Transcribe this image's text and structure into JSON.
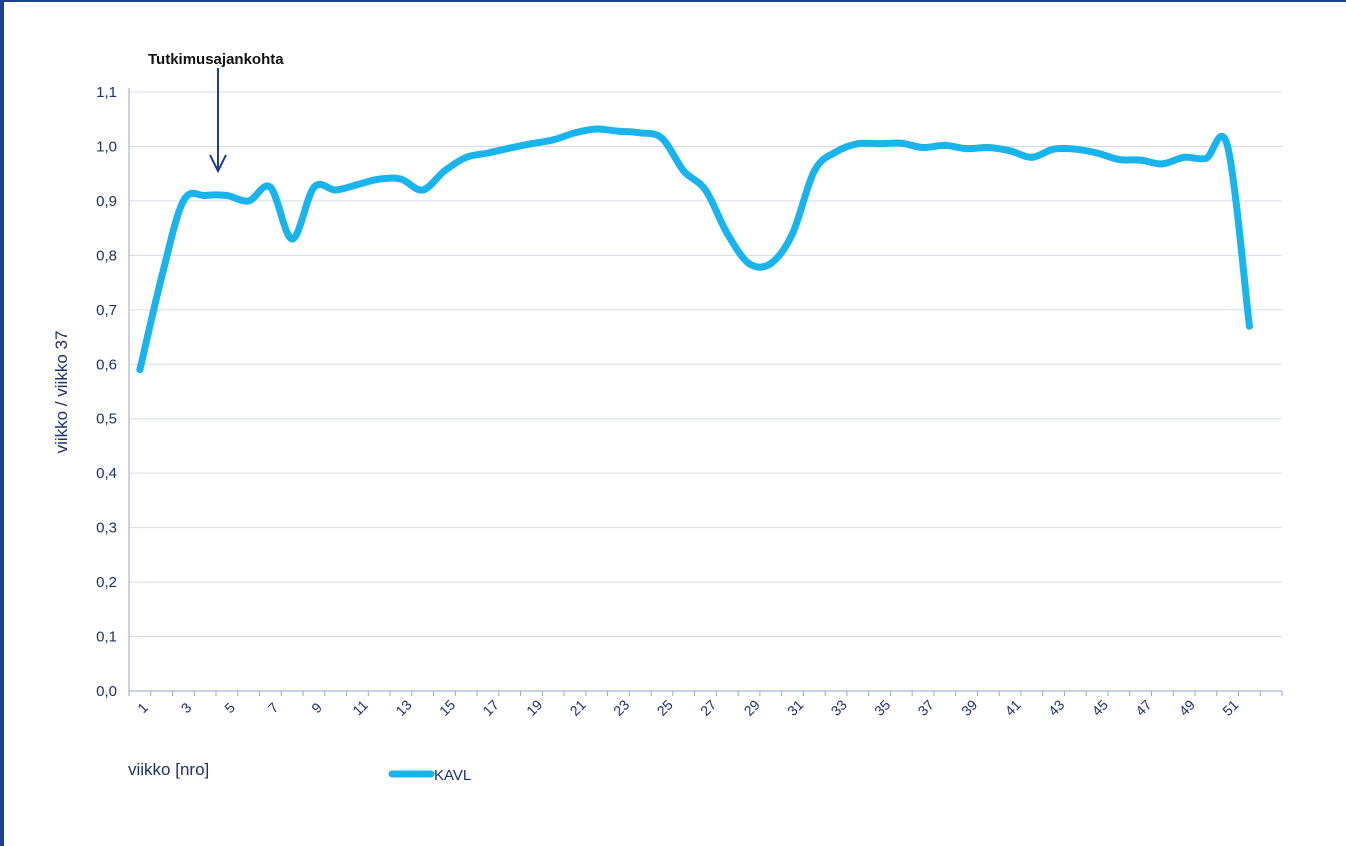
{
  "chart_data": {
    "type": "line",
    "ylabel": "viikko / viikko 37",
    "xlabel": "viikko [nro]",
    "annotation": {
      "text": "Tutkimusajankohta",
      "x": 4
    },
    "ylim": [
      0.0,
      1.1
    ],
    "xlim": [
      0.5,
      53.5
    ],
    "y_ticks": [
      "0,0",
      "0,1",
      "0,2",
      "0,3",
      "0,4",
      "0,5",
      "0,6",
      "0,7",
      "0,8",
      "0,9",
      "1,0",
      "1,1"
    ],
    "x_tick_labels": [
      "1",
      "3",
      "5",
      "7",
      "9",
      "11",
      "13",
      "15",
      "17",
      "19",
      "21",
      "23",
      "25",
      "27",
      "29",
      "31",
      "33",
      "35",
      "37",
      "39",
      "41",
      "43",
      "45",
      "47",
      "49",
      "51"
    ],
    "grid": true,
    "legend_position": "bottom-left",
    "series": [
      {
        "name": "KAVL",
        "color": "#19b4ec",
        "x": [
          1,
          2,
          3,
          4,
          5,
          6,
          7,
          8,
          9,
          10,
          11,
          12,
          13,
          14,
          15,
          16,
          17,
          18,
          19,
          20,
          21,
          22,
          23,
          24,
          25,
          26,
          27,
          28,
          29,
          30,
          31,
          32,
          33,
          34,
          35,
          36,
          37,
          38,
          39,
          40,
          41,
          42,
          43,
          44,
          45,
          46,
          47,
          48,
          49,
          50,
          51,
          52
        ],
        "values": [
          0.59,
          0.76,
          0.9,
          0.91,
          0.91,
          0.9,
          0.925,
          0.83,
          0.925,
          0.92,
          0.93,
          0.94,
          0.94,
          0.92,
          0.955,
          0.98,
          0.988,
          0.997,
          1.005,
          1.012,
          1.025,
          1.032,
          1.028,
          1.025,
          1.015,
          0.955,
          0.92,
          0.84,
          0.785,
          0.785,
          0.84,
          0.955,
          0.99,
          1.005,
          1.005,
          1.006,
          0.998,
          1.002,
          0.996,
          0.998,
          0.992,
          0.98,
          0.995,
          0.995,
          0.988,
          0.976,
          0.975,
          0.968,
          0.98,
          0.978,
          1.0,
          0.67
        ]
      }
    ]
  }
}
